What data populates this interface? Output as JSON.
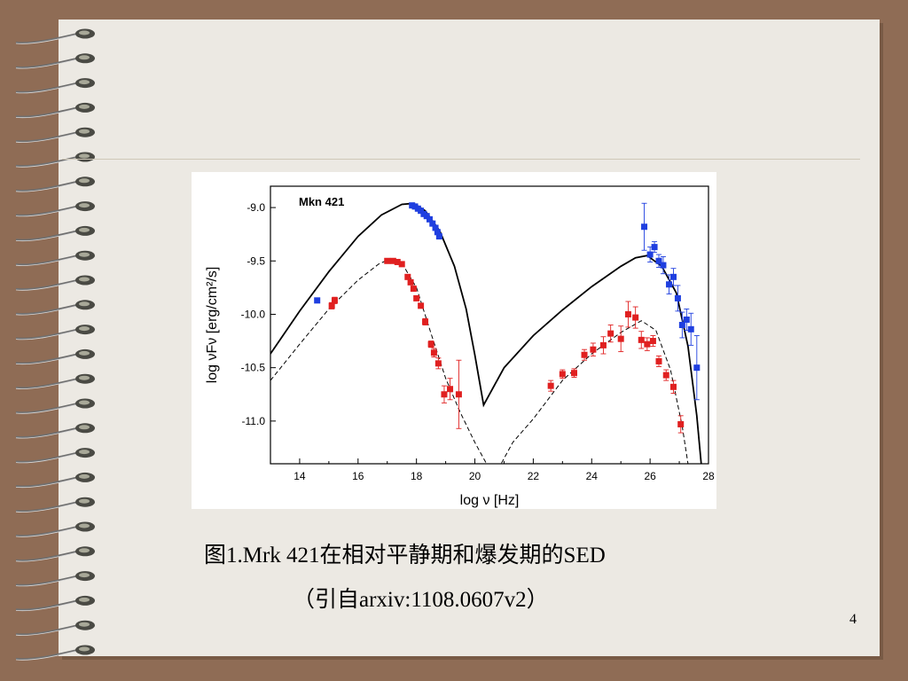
{
  "slide": {
    "caption_line1": "图1.Mrk 421在相对平静期和爆发期的SED",
    "caption_line2": "（引自arxiv:1108.0607v2）",
    "page_number": "4"
  },
  "colors": {
    "page_bg": "#8f6c55",
    "slide_bg": "#ece9e3",
    "flare_points": "#1f3fe0",
    "quiet_points": "#e02020"
  },
  "chart_data": {
    "type": "scatter",
    "label": "Mkn 421",
    "xlabel": "log ν  [Hz]",
    "ylabel": "log  νFν  [erg/cm²/s]",
    "xlim": [
      13,
      28
    ],
    "ylim": [
      -11.4,
      -8.8
    ],
    "xticks": [
      14,
      16,
      18,
      20,
      22,
      24,
      26,
      28
    ],
    "yticks": [
      -9.0,
      -9.5,
      -10.0,
      -10.5,
      -11.0
    ],
    "series": [
      {
        "kind": "points",
        "color": "#1f3fe0",
        "points": [
          [
            14.6,
            -9.87,
            0
          ],
          [
            17.85,
            -8.98,
            0
          ],
          [
            17.95,
            -8.99,
            0
          ],
          [
            18.05,
            -9.01,
            0
          ],
          [
            18.15,
            -9.03,
            0
          ],
          [
            18.25,
            -9.06,
            0
          ],
          [
            18.35,
            -9.08,
            0
          ],
          [
            18.45,
            -9.11,
            0
          ],
          [
            18.55,
            -9.15,
            0
          ],
          [
            18.65,
            -9.19,
            0
          ],
          [
            18.72,
            -9.23,
            0
          ],
          [
            18.78,
            -9.27,
            0
          ],
          [
            25.8,
            -9.18,
            0.22
          ],
          [
            26.0,
            -9.44,
            0.07
          ],
          [
            26.15,
            -9.37,
            0.05
          ],
          [
            26.3,
            -9.5,
            0.06
          ],
          [
            26.45,
            -9.54,
            0.08
          ],
          [
            26.65,
            -9.72,
            0.09
          ],
          [
            26.8,
            -9.65,
            0.08
          ],
          [
            26.95,
            -9.85,
            0.12
          ],
          [
            27.1,
            -10.1,
            0.12
          ],
          [
            27.25,
            -10.05,
            0.1
          ],
          [
            27.4,
            -10.14,
            0.15
          ],
          [
            27.6,
            -10.5,
            0.3
          ]
        ]
      },
      {
        "kind": "points",
        "color": "#e02020",
        "points": [
          [
            15.1,
            -9.92,
            0.03
          ],
          [
            15.2,
            -9.87,
            0.03
          ],
          [
            17.0,
            -9.5,
            0.02
          ],
          [
            17.2,
            -9.5,
            0.02
          ],
          [
            17.35,
            -9.51,
            0.02
          ],
          [
            17.5,
            -9.53,
            0.02
          ],
          [
            17.7,
            -9.65,
            0.02
          ],
          [
            17.8,
            -9.7,
            0.02
          ],
          [
            17.9,
            -9.76,
            0.02
          ],
          [
            18.0,
            -9.85,
            0.02
          ],
          [
            18.15,
            -9.92,
            0.02
          ],
          [
            18.3,
            -10.07,
            0.03
          ],
          [
            18.5,
            -10.28,
            0.03
          ],
          [
            18.6,
            -10.36,
            0.04
          ],
          [
            18.75,
            -10.46,
            0.05
          ],
          [
            18.95,
            -10.75,
            0.08
          ],
          [
            19.15,
            -10.7,
            0.1
          ],
          [
            19.45,
            -10.75,
            0.32
          ],
          [
            22.6,
            -10.67,
            0.05
          ],
          [
            23.0,
            -10.56,
            0.04
          ],
          [
            23.4,
            -10.55,
            0.04
          ],
          [
            23.75,
            -10.38,
            0.05
          ],
          [
            24.05,
            -10.33,
            0.06
          ],
          [
            24.4,
            -10.29,
            0.08
          ],
          [
            24.65,
            -10.18,
            0.08
          ],
          [
            25.0,
            -10.23,
            0.12
          ],
          [
            25.25,
            -10.0,
            0.12
          ],
          [
            25.5,
            -10.03,
            0.1
          ],
          [
            25.7,
            -10.24,
            0.08
          ],
          [
            25.9,
            -10.28,
            0.06
          ],
          [
            26.1,
            -10.25,
            0.05
          ],
          [
            26.3,
            -10.44,
            0.05
          ],
          [
            26.55,
            -10.57,
            0.05
          ],
          [
            26.8,
            -10.68,
            0.06
          ],
          [
            27.05,
            -11.03,
            0.08
          ]
        ]
      },
      {
        "kind": "line",
        "style": "solid",
        "color": "#000000",
        "points": [
          [
            13.0,
            -10.37
          ],
          [
            14.0,
            -9.97
          ],
          [
            15.0,
            -9.6
          ],
          [
            16.0,
            -9.27
          ],
          [
            16.8,
            -9.07
          ],
          [
            17.5,
            -8.97
          ],
          [
            17.9,
            -8.96
          ],
          [
            18.3,
            -9.03
          ],
          [
            18.8,
            -9.22
          ],
          [
            19.3,
            -9.55
          ],
          [
            19.7,
            -9.95
          ],
          [
            20.0,
            -10.38
          ],
          [
            20.3,
            -10.85
          ],
          [
            20.6,
            -10.7
          ],
          [
            21.0,
            -10.5
          ],
          [
            22.0,
            -10.2
          ],
          [
            23.0,
            -9.96
          ],
          [
            24.0,
            -9.74
          ],
          [
            25.0,
            -9.55
          ],
          [
            25.5,
            -9.47
          ],
          [
            25.9,
            -9.45
          ],
          [
            26.4,
            -9.55
          ],
          [
            26.9,
            -9.8
          ],
          [
            27.3,
            -10.3
          ],
          [
            27.6,
            -10.95
          ],
          [
            27.75,
            -11.4
          ]
        ]
      },
      {
        "kind": "line",
        "style": "dashed",
        "color": "#000000",
        "points": [
          [
            13.0,
            -10.62
          ],
          [
            14.0,
            -10.28
          ],
          [
            15.0,
            -9.95
          ],
          [
            16.0,
            -9.68
          ],
          [
            16.7,
            -9.53
          ],
          [
            17.1,
            -9.48
          ],
          [
            17.5,
            -9.52
          ],
          [
            18.0,
            -9.75
          ],
          [
            18.5,
            -10.18
          ],
          [
            19.0,
            -10.6
          ],
          [
            19.5,
            -10.92
          ],
          [
            20.0,
            -11.2
          ],
          [
            20.4,
            -11.4
          ],
          [
            20.9,
            -11.4
          ],
          [
            21.3,
            -11.2
          ],
          [
            22.0,
            -10.98
          ],
          [
            23.0,
            -10.62
          ],
          [
            24.0,
            -10.37
          ],
          [
            25.0,
            -10.17
          ],
          [
            25.7,
            -10.06
          ],
          [
            26.2,
            -10.15
          ],
          [
            26.7,
            -10.52
          ],
          [
            27.1,
            -11.05
          ],
          [
            27.3,
            -11.4
          ]
        ]
      }
    ]
  }
}
